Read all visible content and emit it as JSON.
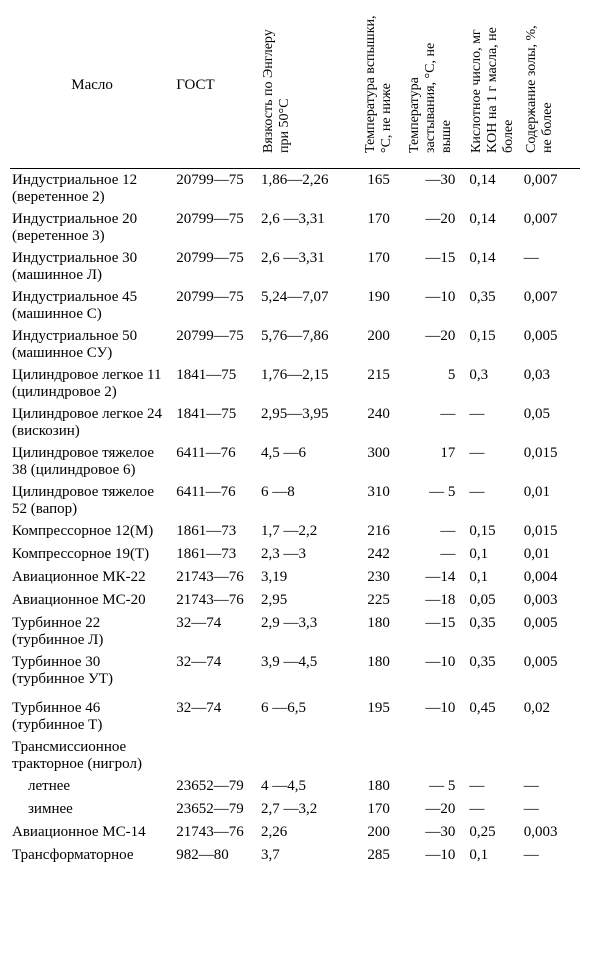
{
  "columns": [
    "Масло",
    "ГОСТ",
    "Вязкость по Энглеру при 50°С",
    "Температура вспышки, °С, не ниже",
    "Температура застывания, °С, не выше",
    "Кислотное число, мг KOH на 1 г масла, не более",
    "Содержание золы, %, не более"
  ],
  "rows": [
    {
      "name": "Индустриальное 12 (веретенное 2)",
      "gost": "20799—75",
      "visc": "1,86—2,26",
      "flash": "165",
      "pour": "—30",
      "acid": "0,14",
      "ash": "0,007"
    },
    {
      "name": "Индустриальное 20 (веретенное 3)",
      "gost": "20799—75",
      "visc": "2,6 —3,31",
      "flash": "170",
      "pour": "—20",
      "acid": "0,14",
      "ash": "0,007"
    },
    {
      "name": "Индустриальное 30 (машинное Л)",
      "gost": "20799—75",
      "visc": "2,6 —3,31",
      "flash": "170",
      "pour": "—15",
      "acid": "0,14",
      "ash": "—"
    },
    {
      "name": "Индустриальное 45 (машинное С)",
      "gost": "20799—75",
      "visc": "5,24—7,07",
      "flash": "190",
      "pour": "—10",
      "acid": "0,35",
      "ash": "0,007"
    },
    {
      "name": "Индустриальное 50 (машинное СУ)",
      "gost": "20799—75",
      "visc": "5,76—7,86",
      "flash": "200",
      "pour": "—20",
      "acid": "0,15",
      "ash": "0,005"
    },
    {
      "name": "Цилиндровое легкое 11 (цилиндровое 2)",
      "gost": "1841—75",
      "visc": "1,76—2,15",
      "flash": "215",
      "pour": "5",
      "acid": "0,3",
      "ash": "0,03"
    },
    {
      "name": "Цилиндровое легкое 24 (вискозин)",
      "gost": "1841—75",
      "visc": "2,95—3,95",
      "flash": "240",
      "pour": "—",
      "acid": "—",
      "ash": "0,05"
    },
    {
      "name": "Цилиндровое тяжелое 38 (цилиндровое 6)",
      "gost": "6411—76",
      "visc": "4,5 —6",
      "flash": "300",
      "pour": "17",
      "acid": "—",
      "ash": "0,015"
    },
    {
      "name": "Цилиндровое тяжелое 52 (вапор)",
      "gost": "6411—76",
      "visc": "6 —8",
      "flash": "310",
      "pour": "— 5",
      "acid": "—",
      "ash": "0,01"
    },
    {
      "name": "Компрессорное 12(М)",
      "gost": "1861—73",
      "visc": "1,7 —2,2",
      "flash": "216",
      "pour": "—",
      "acid": "0,15",
      "ash": "0,015"
    },
    {
      "name": "Компрессорное 19(Т)",
      "gost": "1861—73",
      "visc": "2,3 —3",
      "flash": "242",
      "pour": "—",
      "acid": "0,1",
      "ash": "0,01"
    },
    {
      "name": "Авиационное МК-22",
      "gost": "21743—76",
      "visc": "3,19",
      "flash": "230",
      "pour": "—14",
      "acid": "0,1",
      "ash": "0,004"
    },
    {
      "name": "Авиационное МС-20",
      "gost": "21743—76",
      "visc": "2,95",
      "flash": "225",
      "pour": "—18",
      "acid": "0,05",
      "ash": "0,003"
    },
    {
      "name": "Турбинное 22 (турбинное Л)",
      "gost": "32—74",
      "visc": "2,9 —3,3",
      "flash": "180",
      "pour": "—15",
      "acid": "0,35",
      "ash": "0,005"
    },
    {
      "name": "Турбинное 30 (турбинное УТ)",
      "gost": "32—74",
      "visc": "3,9 —4,5",
      "flash": "180",
      "pour": "—10",
      "acid": "0,35",
      "ash": "0,005"
    },
    {
      "name": "Турбинное 46 (турбинное Т)",
      "gost": "32—74",
      "visc": "6 —6,5",
      "flash": "195",
      "pour": "—10",
      "acid": "0,45",
      "ash": "0,02",
      "gap": true
    },
    {
      "name": "Трансмиссионное тракторное (нигрол)",
      "gost": "",
      "visc": "",
      "flash": "",
      "pour": "",
      "acid": "",
      "ash": ""
    },
    {
      "name": "летнее",
      "gost": "23652—79",
      "visc": "4 —4,5",
      "flash": "180",
      "pour": "— 5",
      "acid": "—",
      "ash": "—",
      "indent": true
    },
    {
      "name": "зимнее",
      "gost": "23652—79",
      "visc": "2,7 —3,2",
      "flash": "170",
      "pour": "—20",
      "acid": "—",
      "ash": "—",
      "indent": true
    },
    {
      "name": "Авиационное МС-14",
      "gost": "21743—76",
      "visc": "2,26",
      "flash": "200",
      "pour": "—30",
      "acid": "0,25",
      "ash": "0,003"
    },
    {
      "name": "Трансформаторное",
      "gost": "982—80",
      "visc": "3,7",
      "flash": "285",
      "pour": "—10",
      "acid": "0,1",
      "ash": "—"
    }
  ]
}
